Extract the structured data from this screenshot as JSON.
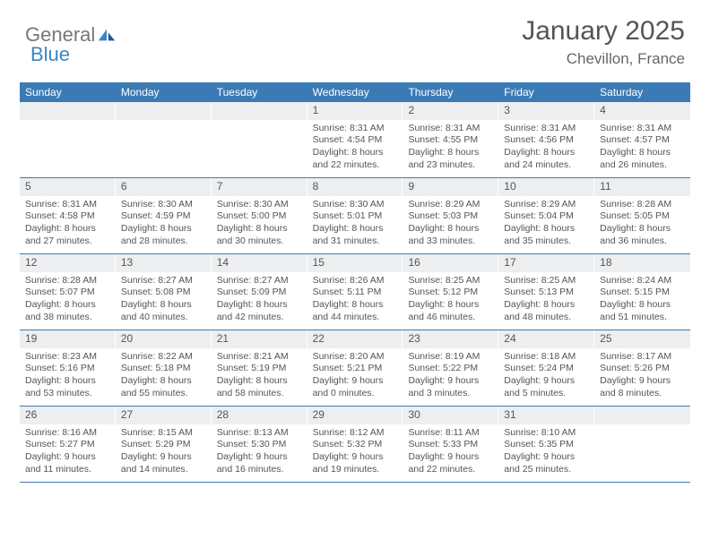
{
  "brand": {
    "text1": "General",
    "text2": "Blue",
    "icon_color": "#3d85c6"
  },
  "title": "January 2025",
  "location": "Chevillon, France",
  "title_color": "#555555",
  "location_color": "#666666",
  "header_bg": "#3b7bb5",
  "header_fg": "#ffffff",
  "daynum_bg": "#eceef0",
  "border_color": "#3b7bb5",
  "body_text_color": "#555555",
  "background_color": "#ffffff",
  "font_family": "Arial",
  "dow_fontsize": 12,
  "daynum_fontsize": 12,
  "body_fontsize": 10.5,
  "days_of_week": [
    "Sunday",
    "Monday",
    "Tuesday",
    "Wednesday",
    "Thursday",
    "Friday",
    "Saturday"
  ],
  "weeks": [
    [
      {
        "n": "",
        "sunrise": "",
        "sunset": "",
        "daylight": ""
      },
      {
        "n": "",
        "sunrise": "",
        "sunset": "",
        "daylight": ""
      },
      {
        "n": "",
        "sunrise": "",
        "sunset": "",
        "daylight": ""
      },
      {
        "n": "1",
        "sunrise": "Sunrise: 8:31 AM",
        "sunset": "Sunset: 4:54 PM",
        "daylight": "Daylight: 8 hours and 22 minutes."
      },
      {
        "n": "2",
        "sunrise": "Sunrise: 8:31 AM",
        "sunset": "Sunset: 4:55 PM",
        "daylight": "Daylight: 8 hours and 23 minutes."
      },
      {
        "n": "3",
        "sunrise": "Sunrise: 8:31 AM",
        "sunset": "Sunset: 4:56 PM",
        "daylight": "Daylight: 8 hours and 24 minutes."
      },
      {
        "n": "4",
        "sunrise": "Sunrise: 8:31 AM",
        "sunset": "Sunset: 4:57 PM",
        "daylight": "Daylight: 8 hours and 26 minutes."
      }
    ],
    [
      {
        "n": "5",
        "sunrise": "Sunrise: 8:31 AM",
        "sunset": "Sunset: 4:58 PM",
        "daylight": "Daylight: 8 hours and 27 minutes."
      },
      {
        "n": "6",
        "sunrise": "Sunrise: 8:30 AM",
        "sunset": "Sunset: 4:59 PM",
        "daylight": "Daylight: 8 hours and 28 minutes."
      },
      {
        "n": "7",
        "sunrise": "Sunrise: 8:30 AM",
        "sunset": "Sunset: 5:00 PM",
        "daylight": "Daylight: 8 hours and 30 minutes."
      },
      {
        "n": "8",
        "sunrise": "Sunrise: 8:30 AM",
        "sunset": "Sunset: 5:01 PM",
        "daylight": "Daylight: 8 hours and 31 minutes."
      },
      {
        "n": "9",
        "sunrise": "Sunrise: 8:29 AM",
        "sunset": "Sunset: 5:03 PM",
        "daylight": "Daylight: 8 hours and 33 minutes."
      },
      {
        "n": "10",
        "sunrise": "Sunrise: 8:29 AM",
        "sunset": "Sunset: 5:04 PM",
        "daylight": "Daylight: 8 hours and 35 minutes."
      },
      {
        "n": "11",
        "sunrise": "Sunrise: 8:28 AM",
        "sunset": "Sunset: 5:05 PM",
        "daylight": "Daylight: 8 hours and 36 minutes."
      }
    ],
    [
      {
        "n": "12",
        "sunrise": "Sunrise: 8:28 AM",
        "sunset": "Sunset: 5:07 PM",
        "daylight": "Daylight: 8 hours and 38 minutes."
      },
      {
        "n": "13",
        "sunrise": "Sunrise: 8:27 AM",
        "sunset": "Sunset: 5:08 PM",
        "daylight": "Daylight: 8 hours and 40 minutes."
      },
      {
        "n": "14",
        "sunrise": "Sunrise: 8:27 AM",
        "sunset": "Sunset: 5:09 PM",
        "daylight": "Daylight: 8 hours and 42 minutes."
      },
      {
        "n": "15",
        "sunrise": "Sunrise: 8:26 AM",
        "sunset": "Sunset: 5:11 PM",
        "daylight": "Daylight: 8 hours and 44 minutes."
      },
      {
        "n": "16",
        "sunrise": "Sunrise: 8:25 AM",
        "sunset": "Sunset: 5:12 PM",
        "daylight": "Daylight: 8 hours and 46 minutes."
      },
      {
        "n": "17",
        "sunrise": "Sunrise: 8:25 AM",
        "sunset": "Sunset: 5:13 PM",
        "daylight": "Daylight: 8 hours and 48 minutes."
      },
      {
        "n": "18",
        "sunrise": "Sunrise: 8:24 AM",
        "sunset": "Sunset: 5:15 PM",
        "daylight": "Daylight: 8 hours and 51 minutes."
      }
    ],
    [
      {
        "n": "19",
        "sunrise": "Sunrise: 8:23 AM",
        "sunset": "Sunset: 5:16 PM",
        "daylight": "Daylight: 8 hours and 53 minutes."
      },
      {
        "n": "20",
        "sunrise": "Sunrise: 8:22 AM",
        "sunset": "Sunset: 5:18 PM",
        "daylight": "Daylight: 8 hours and 55 minutes."
      },
      {
        "n": "21",
        "sunrise": "Sunrise: 8:21 AM",
        "sunset": "Sunset: 5:19 PM",
        "daylight": "Daylight: 8 hours and 58 minutes."
      },
      {
        "n": "22",
        "sunrise": "Sunrise: 8:20 AM",
        "sunset": "Sunset: 5:21 PM",
        "daylight": "Daylight: 9 hours and 0 minutes."
      },
      {
        "n": "23",
        "sunrise": "Sunrise: 8:19 AM",
        "sunset": "Sunset: 5:22 PM",
        "daylight": "Daylight: 9 hours and 3 minutes."
      },
      {
        "n": "24",
        "sunrise": "Sunrise: 8:18 AM",
        "sunset": "Sunset: 5:24 PM",
        "daylight": "Daylight: 9 hours and 5 minutes."
      },
      {
        "n": "25",
        "sunrise": "Sunrise: 8:17 AM",
        "sunset": "Sunset: 5:26 PM",
        "daylight": "Daylight: 9 hours and 8 minutes."
      }
    ],
    [
      {
        "n": "26",
        "sunrise": "Sunrise: 8:16 AM",
        "sunset": "Sunset: 5:27 PM",
        "daylight": "Daylight: 9 hours and 11 minutes."
      },
      {
        "n": "27",
        "sunrise": "Sunrise: 8:15 AM",
        "sunset": "Sunset: 5:29 PM",
        "daylight": "Daylight: 9 hours and 14 minutes."
      },
      {
        "n": "28",
        "sunrise": "Sunrise: 8:13 AM",
        "sunset": "Sunset: 5:30 PM",
        "daylight": "Daylight: 9 hours and 16 minutes."
      },
      {
        "n": "29",
        "sunrise": "Sunrise: 8:12 AM",
        "sunset": "Sunset: 5:32 PM",
        "daylight": "Daylight: 9 hours and 19 minutes."
      },
      {
        "n": "30",
        "sunrise": "Sunrise: 8:11 AM",
        "sunset": "Sunset: 5:33 PM",
        "daylight": "Daylight: 9 hours and 22 minutes."
      },
      {
        "n": "31",
        "sunrise": "Sunrise: 8:10 AM",
        "sunset": "Sunset: 5:35 PM",
        "daylight": "Daylight: 9 hours and 25 minutes."
      },
      {
        "n": "",
        "sunrise": "",
        "sunset": "",
        "daylight": ""
      }
    ]
  ]
}
